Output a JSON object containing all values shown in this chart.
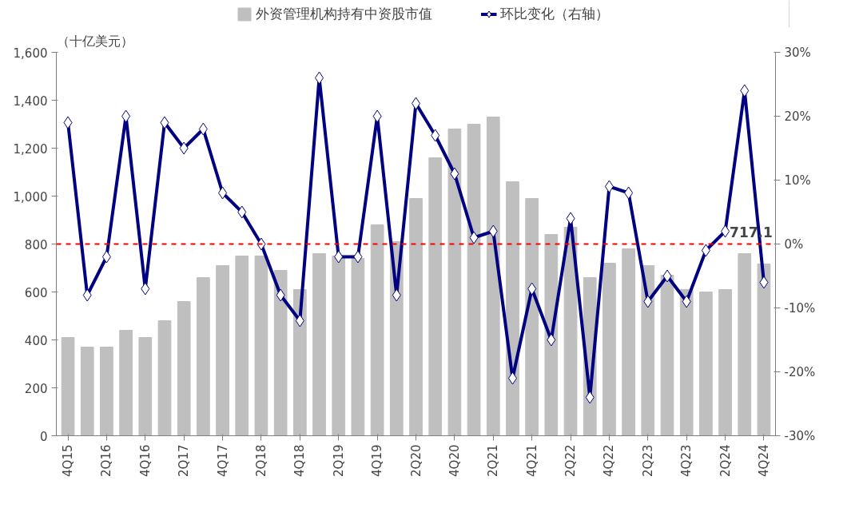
{
  "chart_data": {
    "type": "bar",
    "categories": [
      "4Q15",
      null,
      "2Q16",
      null,
      "4Q16",
      null,
      "2Q17",
      null,
      "4Q17",
      null,
      "2Q18",
      null,
      "4Q18",
      null,
      "2Q19",
      null,
      "4Q19",
      null,
      "2Q20",
      null,
      "4Q20",
      null,
      "2Q21",
      null,
      "4Q21",
      null,
      "2Q22",
      null,
      "4Q22",
      null,
      "2Q23",
      null,
      "4Q23",
      null,
      "2Q24",
      null,
      "4Q24"
    ],
    "series": [
      {
        "name": "外资管理机构持有中资股市值",
        "color": "#bfbfbf",
        "values": [
          410,
          370,
          370,
          440,
          410,
          480,
          560,
          660,
          710,
          750,
          750,
          690,
          610,
          760,
          750,
          740,
          880,
          810,
          990,
          1160,
          1280,
          1300,
          1330,
          1060,
          990,
          840,
          870,
          660,
          720,
          780,
          710,
          670,
          610,
          600,
          610,
          760,
          717.1
        ]
      },
      {
        "name": "环比变化（右轴）",
        "type": "line",
        "axis": "y2",
        "color": "#000080",
        "marker": "diamond",
        "values": [
          19,
          -8,
          -2,
          20,
          -7,
          19,
          15,
          18,
          8,
          5,
          0,
          -8,
          -12,
          26,
          -2,
          -2,
          20,
          -8,
          22,
          17,
          11,
          1,
          2,
          -21,
          -7,
          -15,
          4,
          -24,
          9,
          8,
          -9,
          -5,
          -9,
          -1,
          2,
          24,
          -6
        ]
      }
    ],
    "ylim": [
      0,
      1600
    ],
    "yticks": [
      0,
      200,
      400,
      600,
      800,
      {
        "value": 1000,
        "label": "1,000"
      },
      {
        "value": 1200,
        "label": "1,200"
      },
      {
        "value": 1400,
        "label": "1,400"
      },
      {
        "value": 1600,
        "label": "1,600"
      }
    ],
    "y2lim": [
      -30,
      30
    ],
    "y2ticks": [
      {
        "value": -30,
        "label": "-30%"
      },
      {
        "value": -20,
        "label": "-20%"
      },
      {
        "value": -10,
        "label": "-10%"
      },
      {
        "value": 0,
        "label": "0%"
      },
      {
        "value": 10,
        "label": "10%"
      },
      {
        "value": 20,
        "label": "20%"
      },
      {
        "value": 30,
        "label": "30%"
      }
    ],
    "ref_lines": [
      {
        "axis": "y2",
        "value": 0,
        "color": "#ff0000",
        "line_style": "dashed"
      }
    ],
    "annotations": [
      "（十亿美元）",
      {
        "text": "717.1",
        "x": "4Q24",
        "y": 717.1
      }
    ],
    "legend": "top",
    "grid": false
  }
}
